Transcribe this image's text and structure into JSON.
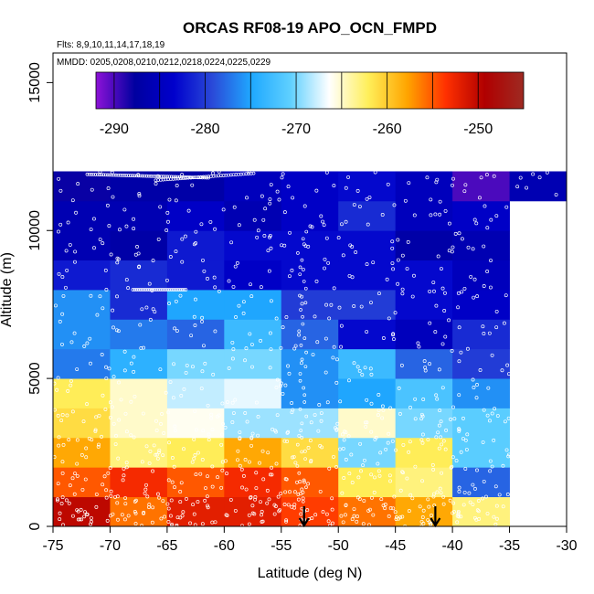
{
  "chart_data": {
    "type": "heatmap",
    "title": "ORCAS RF08-19 APO_OCN_FMPD",
    "subtitle_flights": "Flts: 8,9,10,11,14,17,18,19",
    "subtitle_dates": "MMDD: 0205,0208,0210,0212,0218,0224,0225,0229",
    "xlabel": "Latitude (deg N)",
    "ylabel": "Altitude (m)",
    "xlim": [
      -75,
      -30
    ],
    "ylim": [
      0,
      16000
    ],
    "x_ticks": [
      -75,
      -70,
      -65,
      -60,
      -55,
      -50,
      -45,
      -40,
      -35,
      -30
    ],
    "x_tick_labels": [
      "-75",
      "-70",
      "-65",
      "-60",
      "-55",
      "-50",
      "-45",
      "-40",
      "-35",
      "-30"
    ],
    "y_ticks": [
      0,
      5000,
      10000,
      15000
    ],
    "y_tick_labels": [
      "0",
      "5000",
      "10000",
      "15000"
    ],
    "colorbar": {
      "range": [
        -292,
        -245
      ],
      "ticks": [
        -290,
        -280,
        -270,
        -260,
        -250
      ],
      "tick_labels": [
        "-290",
        "-280",
        "-270",
        "-260",
        "-250"
      ],
      "placement": "top inset",
      "stops": [
        "#8d12d7",
        "#0000a0",
        "#0000cc",
        "#2a4ad8",
        "#1fa8ff",
        "#5fd0ff",
        "#ffffff",
        "#ffef5a",
        "#ffa500",
        "#ff3000",
        "#b00000",
        "#9e2a22"
      ]
    },
    "lat_bins": [
      -75,
      -70,
      -65,
      -60,
      -55,
      -50,
      -45,
      -40,
      -35
    ],
    "alt_bin_size_m": 1000,
    "cell_values": [
      [
        -250,
        -256,
        -252,
        -252,
        -254,
        -256,
        -258,
        -263,
        null
      ],
      [
        -255,
        -253,
        -255,
        -253,
        -255,
        -262,
        -263,
        -278,
        null
      ],
      [
        -258,
        -263,
        -262,
        -258,
        -261,
        -270,
        -262,
        -271,
        null
      ],
      [
        -261,
        -265,
        -266,
        -269,
        -269,
        -265,
        -270,
        -271,
        null
      ],
      [
        -262,
        -265,
        -268,
        -267,
        -276,
        -275,
        -272,
        -276,
        null
      ],
      [
        -277,
        -274,
        -270,
        -270,
        -276,
        -273,
        -278,
        -280,
        null
      ],
      [
        -276,
        -277,
        -278,
        -273,
        -278,
        -283,
        -285,
        -281,
        null
      ],
      [
        -276,
        -281,
        -275,
        -275,
        -280,
        -280,
        -283,
        -284,
        null
      ],
      [
        -282,
        -281,
        -282,
        -284,
        -283,
        -283,
        -283,
        -285,
        null
      ],
      [
        -286,
        -287,
        -282,
        -283,
        -283,
        -283,
        -287,
        -286,
        null
      ],
      [
        -286,
        -286,
        -284,
        -286,
        -284,
        -281,
        -285,
        -284,
        null
      ],
      [
        -288,
        -287,
        -287,
        -285,
        -284,
        -283,
        -285,
        -290,
        -286
      ]
    ],
    "arrows_lat": [
      -53,
      -41.5
    ],
    "arrow_altitude_m": 0
  }
}
